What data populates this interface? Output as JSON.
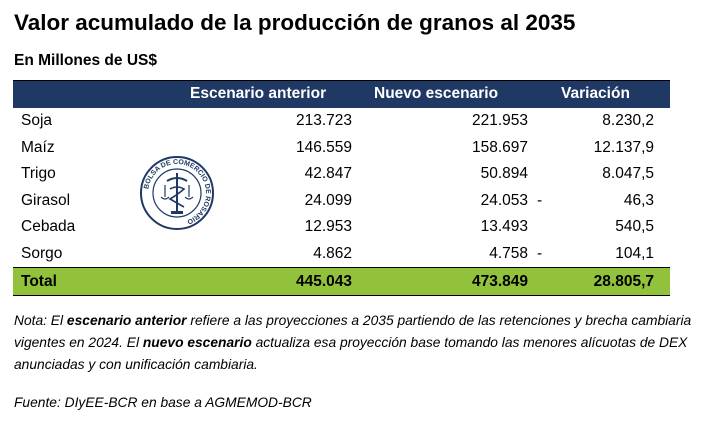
{
  "title": "Valor acumulado de la producción de granos al 2035",
  "subtitle": "En Millones de US$",
  "colors": {
    "header_bg": "#1f3864",
    "total_bg": "#92c13c",
    "seal": "#1f3864"
  },
  "seal": {
    "icon": "bolsa-de-comercio-seal-icon",
    "text": "BOLSA DE COMERCIO DE ROSARIO"
  },
  "table": {
    "headers": [
      "",
      "Escenario anterior",
      "Nuevo escenario",
      "Variación"
    ],
    "rows": [
      {
        "name": "Soja",
        "anterior": "213.723",
        "nuevo": "221.953",
        "sign": "",
        "variacion": "8.230,2"
      },
      {
        "name": "Maíz",
        "anterior": "146.559",
        "nuevo": "158.697",
        "sign": "",
        "variacion": "12.137,9"
      },
      {
        "name": "Trigo",
        "anterior": "42.847",
        "nuevo": "50.894",
        "sign": "",
        "variacion": "8.047,5"
      },
      {
        "name": "Girasol",
        "anterior": "24.099",
        "nuevo": "24.053",
        "sign": "-",
        "variacion": "46,3"
      },
      {
        "name": "Cebada",
        "anterior": "12.953",
        "nuevo": "13.493",
        "sign": "",
        "variacion": "540,5"
      },
      {
        "name": "Sorgo",
        "anterior": "4.862",
        "nuevo": "4.758",
        "sign": "-",
        "variacion": "104,1"
      }
    ],
    "total": {
      "name": "Total",
      "anterior": "445.043",
      "nuevo": "473.849",
      "variacion": "28.805,7"
    }
  },
  "note": {
    "prefix": "Nota: El ",
    "bold1": "escenario anterior",
    "mid": " refiere a las proyecciones a 2035 partiendo de las retenciones y brecha cambiaria vigentes en 2024. El ",
    "bold2": "nuevo escenario",
    "suffix": " actualiza esa proyección base tomando las menores alícuotas de DEX anunciadas y con unificación cambiaria."
  },
  "source": "Fuente: DIyEE-BCR en base a AGMEMOD-BCR"
}
